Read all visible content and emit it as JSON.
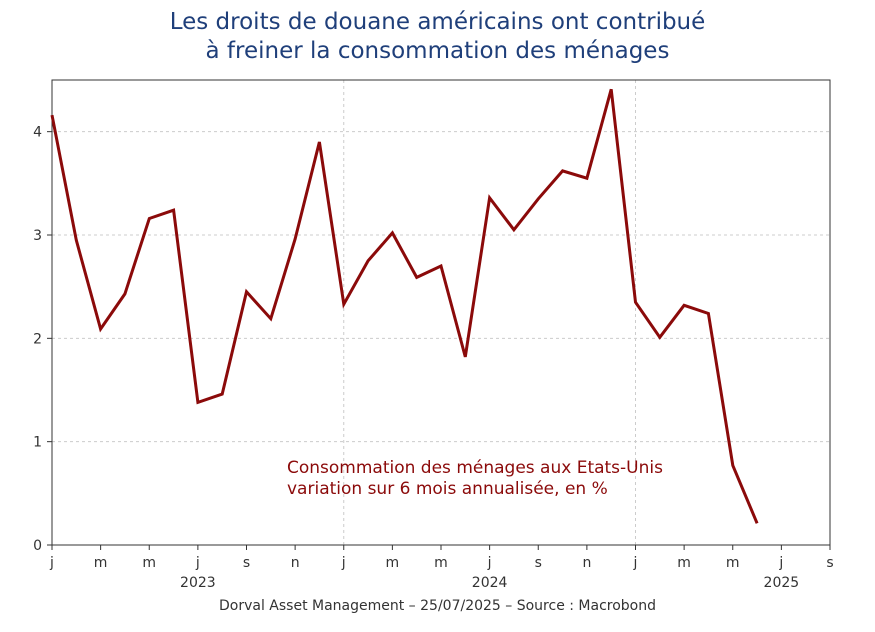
{
  "title": {
    "line1": "Les droits de douane américains ont contribué",
    "line2": "à freiner la consommation des ménages"
  },
  "footer": "Dorval Asset Management – 25/07/2025 –   Source : Macrobond",
  "colors": {
    "title": "#1f3f7a",
    "series": "#8b0a0a",
    "grid": "#cccccc",
    "axis": "#333333"
  },
  "chart_data": {
    "type": "line",
    "title": "Les droits de douane américains ont contribué à freiner la consommation des ménages",
    "ylim": [
      0,
      4.5
    ],
    "yticks": [
      0,
      1,
      2,
      3,
      4
    ],
    "x_range": [
      "2023-01",
      "2025-09"
    ],
    "month_ticks": [
      {
        "date": "2023-01",
        "label": "j"
      },
      {
        "date": "2023-03",
        "label": "m"
      },
      {
        "date": "2023-05",
        "label": "m"
      },
      {
        "date": "2023-07",
        "label": "j"
      },
      {
        "date": "2023-09",
        "label": "s"
      },
      {
        "date": "2023-11",
        "label": "n"
      },
      {
        "date": "2024-01",
        "label": "j"
      },
      {
        "date": "2024-03",
        "label": "m"
      },
      {
        "date": "2024-05",
        "label": "m"
      },
      {
        "date": "2024-07",
        "label": "j"
      },
      {
        "date": "2024-09",
        "label": "s"
      },
      {
        "date": "2024-11",
        "label": "n"
      },
      {
        "date": "2025-01",
        "label": "j"
      },
      {
        "date": "2025-03",
        "label": "m"
      },
      {
        "date": "2025-05",
        "label": "m"
      },
      {
        "date": "2025-07",
        "label": "j"
      },
      {
        "date": "2025-09",
        "label": "s"
      }
    ],
    "year_labels": [
      {
        "date": "2023-07",
        "label": "2023"
      },
      {
        "date": "2024-07",
        "label": "2024"
      },
      {
        "date": "2025-07",
        "label": "2025"
      }
    ],
    "vertical_grid": [
      "2024-01",
      "2025-01"
    ],
    "grid": true,
    "series": [
      {
        "annotation": [
          "Consommation des ménages aux Etats-Unis",
          "variation sur 6 mois annualisée, en %"
        ],
        "color": "#8b0a0a",
        "points": [
          {
            "x": "2023-01",
            "y": 4.16
          },
          {
            "x": "2023-02",
            "y": 2.95
          },
          {
            "x": "2023-03",
            "y": 2.09
          },
          {
            "x": "2023-04",
            "y": 2.43
          },
          {
            "x": "2023-05",
            "y": 3.16
          },
          {
            "x": "2023-06",
            "y": 3.24
          },
          {
            "x": "2023-07",
            "y": 1.38
          },
          {
            "x": "2023-08",
            "y": 1.46
          },
          {
            "x": "2023-09",
            "y": 2.45
          },
          {
            "x": "2023-10",
            "y": 2.19
          },
          {
            "x": "2023-11",
            "y": 2.96
          },
          {
            "x": "2023-12",
            "y": 3.9
          },
          {
            "x": "2024-01",
            "y": 2.33
          },
          {
            "x": "2024-02",
            "y": 2.75
          },
          {
            "x": "2024-03",
            "y": 3.02
          },
          {
            "x": "2024-04",
            "y": 2.59
          },
          {
            "x": "2024-05",
            "y": 2.7
          },
          {
            "x": "2024-06",
            "y": 1.82
          },
          {
            "x": "2024-07",
            "y": 3.36
          },
          {
            "x": "2024-08",
            "y": 3.05
          },
          {
            "x": "2024-09",
            "y": 3.35
          },
          {
            "x": "2024-10",
            "y": 3.62
          },
          {
            "x": "2024-11",
            "y": 3.55
          },
          {
            "x": "2024-12",
            "y": 4.41
          },
          {
            "x": "2025-01",
            "y": 2.35
          },
          {
            "x": "2025-02",
            "y": 2.01
          },
          {
            "x": "2025-03",
            "y": 2.32
          },
          {
            "x": "2025-04",
            "y": 2.24
          },
          {
            "x": "2025-05",
            "y": 0.77
          },
          {
            "x": "2025-06",
            "y": 0.21
          }
        ]
      }
    ]
  }
}
